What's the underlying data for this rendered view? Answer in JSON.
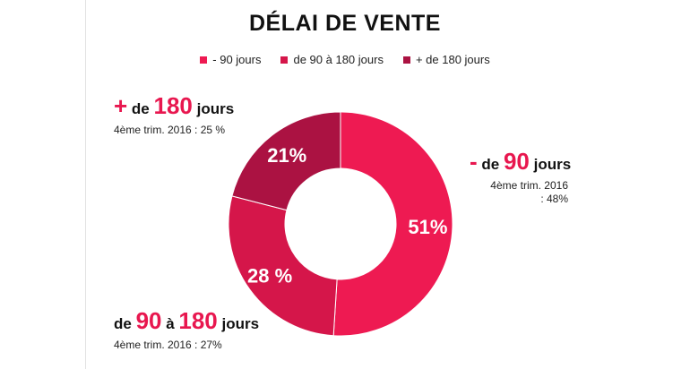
{
  "title": "DÉLAI DE VENTE",
  "legend": [
    {
      "label": "- 90 jours",
      "color": "#ee1a52"
    },
    {
      "label": "de 90 à 180 jours",
      "color": "#d5164a"
    },
    {
      "label": "+ de 180 jours",
      "color": "#ab1242"
    }
  ],
  "callouts": {
    "plus180": {
      "sign": "+",
      "pre": " de ",
      "num": "180",
      "post": " jours",
      "sub": "4ème trim. 2016 : 25 %"
    },
    "minus90": {
      "sign": "-",
      "pre": " de ",
      "num": "90",
      "post": " jours",
      "sub": "4ème trim. 2016 : 48%"
    },
    "de90a180": {
      "pre": "de ",
      "num1": "90",
      "mid": " à ",
      "num2": "180",
      "post": " jours",
      "sub": "4ème trim. 2016 : 27%"
    }
  },
  "chart_data": {
    "type": "pie",
    "donut": true,
    "title": "DÉLAI DE VENTE",
    "legend_position": "top",
    "categories": [
      "- 90 jours",
      "de 90 à 180 jours",
      "+ de 180 jours"
    ],
    "values": [
      51,
      28,
      21
    ],
    "labels": [
      "51%",
      "28 %",
      "21%"
    ],
    "colors": [
      "#ee1a52",
      "#d5164a",
      "#ab1242"
    ]
  }
}
